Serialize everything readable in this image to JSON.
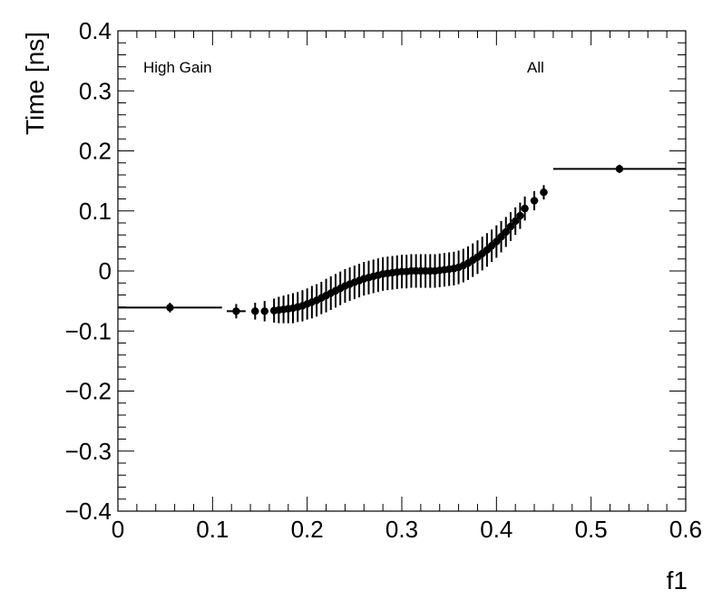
{
  "chart_data": {
    "type": "scatter",
    "title": "",
    "xlabel": "f1",
    "ylabel": "Time [ns]",
    "xlim": [
      0,
      0.6
    ],
    "ylim": [
      -0.4,
      0.4
    ],
    "grid": false,
    "x_ticks": [
      "0",
      "0.1",
      "0.2",
      "0.3",
      "0.4",
      "0.5",
      "0.6"
    ],
    "y_ticks": [
      "−0.4",
      "−0.3",
      "−0.2",
      "−0.1",
      "0",
      "0.1",
      "0.2",
      "0.3",
      "0.4"
    ],
    "annotations": [
      "High Gain",
      "All"
    ],
    "series": [
      {
        "color": "#000000",
        "points": [
          {
            "x": 0.055,
            "y": -0.061,
            "xerr": 0.055,
            "yerr": 0.008
          },
          {
            "x": 0.125,
            "y": -0.067,
            "xerr": 0.01,
            "yerr": 0.012
          },
          {
            "x": 0.145,
            "y": -0.067,
            "xerr": 0.004,
            "yerr": 0.014
          },
          {
            "x": 0.155,
            "y": -0.067,
            "xerr": 0.004,
            "yerr": 0.017
          },
          {
            "x": 0.165,
            "y": -0.066,
            "xerr": 0.004,
            "yerr": 0.02
          },
          {
            "x": 0.17,
            "y": -0.065,
            "xerr": 0.002,
            "yerr": 0.022
          },
          {
            "x": 0.175,
            "y": -0.064,
            "xerr": 0.002,
            "yerr": 0.023
          },
          {
            "x": 0.18,
            "y": -0.063,
            "xerr": 0.002,
            "yerr": 0.024
          },
          {
            "x": 0.185,
            "y": -0.062,
            "xerr": 0.002,
            "yerr": 0.025
          },
          {
            "x": 0.19,
            "y": -0.06,
            "xerr": 0.002,
            "yerr": 0.025
          },
          {
            "x": 0.195,
            "y": -0.058,
            "xerr": 0.002,
            "yerr": 0.026
          },
          {
            "x": 0.2,
            "y": -0.055,
            "xerr": 0.002,
            "yerr": 0.026
          },
          {
            "x": 0.205,
            "y": -0.052,
            "xerr": 0.002,
            "yerr": 0.027
          },
          {
            "x": 0.21,
            "y": -0.049,
            "xerr": 0.002,
            "yerr": 0.027
          },
          {
            "x": 0.215,
            "y": -0.045,
            "xerr": 0.002,
            "yerr": 0.027
          },
          {
            "x": 0.22,
            "y": -0.041,
            "xerr": 0.002,
            "yerr": 0.028
          },
          {
            "x": 0.225,
            "y": -0.037,
            "xerr": 0.002,
            "yerr": 0.028
          },
          {
            "x": 0.23,
            "y": -0.033,
            "xerr": 0.002,
            "yerr": 0.028
          },
          {
            "x": 0.235,
            "y": -0.029,
            "xerr": 0.002,
            "yerr": 0.028
          },
          {
            "x": 0.24,
            "y": -0.025,
            "xerr": 0.002,
            "yerr": 0.028
          },
          {
            "x": 0.245,
            "y": -0.022,
            "xerr": 0.002,
            "yerr": 0.028
          },
          {
            "x": 0.25,
            "y": -0.019,
            "xerr": 0.002,
            "yerr": 0.028
          },
          {
            "x": 0.255,
            "y": -0.016,
            "xerr": 0.002,
            "yerr": 0.028
          },
          {
            "x": 0.26,
            "y": -0.013,
            "xerr": 0.002,
            "yerr": 0.028
          },
          {
            "x": 0.265,
            "y": -0.011,
            "xerr": 0.002,
            "yerr": 0.028
          },
          {
            "x": 0.27,
            "y": -0.009,
            "xerr": 0.002,
            "yerr": 0.028
          },
          {
            "x": 0.275,
            "y": -0.007,
            "xerr": 0.002,
            "yerr": 0.028
          },
          {
            "x": 0.28,
            "y": -0.005,
            "xerr": 0.002,
            "yerr": 0.028
          },
          {
            "x": 0.285,
            "y": -0.004,
            "xerr": 0.002,
            "yerr": 0.028
          },
          {
            "x": 0.29,
            "y": -0.003,
            "xerr": 0.002,
            "yerr": 0.028
          },
          {
            "x": 0.295,
            "y": -0.002,
            "xerr": 0.002,
            "yerr": 0.028
          },
          {
            "x": 0.3,
            "y": -0.001,
            "xerr": 0.002,
            "yerr": 0.028
          },
          {
            "x": 0.305,
            "y": -0.001,
            "xerr": 0.002,
            "yerr": 0.028
          },
          {
            "x": 0.31,
            "y": 0.0,
            "xerr": 0.002,
            "yerr": 0.028
          },
          {
            "x": 0.315,
            "y": 0.0,
            "xerr": 0.002,
            "yerr": 0.028
          },
          {
            "x": 0.32,
            "y": 0.0,
            "xerr": 0.002,
            "yerr": 0.028
          },
          {
            "x": 0.325,
            "y": 0.0,
            "xerr": 0.002,
            "yerr": 0.028
          },
          {
            "x": 0.33,
            "y": 0.0,
            "xerr": 0.002,
            "yerr": 0.028
          },
          {
            "x": 0.335,
            "y": 0.0,
            "xerr": 0.002,
            "yerr": 0.028
          },
          {
            "x": 0.34,
            "y": 0.001,
            "xerr": 0.002,
            "yerr": 0.028
          },
          {
            "x": 0.345,
            "y": 0.002,
            "xerr": 0.002,
            "yerr": 0.028
          },
          {
            "x": 0.35,
            "y": 0.003,
            "xerr": 0.002,
            "yerr": 0.028
          },
          {
            "x": 0.355,
            "y": 0.004,
            "xerr": 0.002,
            "yerr": 0.028
          },
          {
            "x": 0.36,
            "y": 0.006,
            "xerr": 0.002,
            "yerr": 0.028
          },
          {
            "x": 0.365,
            "y": 0.009,
            "xerr": 0.002,
            "yerr": 0.028
          },
          {
            "x": 0.37,
            "y": 0.013,
            "xerr": 0.002,
            "yerr": 0.028
          },
          {
            "x": 0.375,
            "y": 0.018,
            "xerr": 0.002,
            "yerr": 0.028
          },
          {
            "x": 0.38,
            "y": 0.023,
            "xerr": 0.002,
            "yerr": 0.028
          },
          {
            "x": 0.385,
            "y": 0.029,
            "xerr": 0.002,
            "yerr": 0.028
          },
          {
            "x": 0.39,
            "y": 0.035,
            "xerr": 0.002,
            "yerr": 0.028
          },
          {
            "x": 0.395,
            "y": 0.042,
            "xerr": 0.002,
            "yerr": 0.027
          },
          {
            "x": 0.4,
            "y": 0.049,
            "xerr": 0.002,
            "yerr": 0.027
          },
          {
            "x": 0.405,
            "y": 0.057,
            "xerr": 0.002,
            "yerr": 0.026
          },
          {
            "x": 0.41,
            "y": 0.065,
            "xerr": 0.002,
            "yerr": 0.025
          },
          {
            "x": 0.415,
            "y": 0.074,
            "xerr": 0.002,
            "yerr": 0.024
          },
          {
            "x": 0.42,
            "y": 0.083,
            "xerr": 0.002,
            "yerr": 0.023
          },
          {
            "x": 0.425,
            "y": 0.092,
            "xerr": 0.002,
            "yerr": 0.022
          },
          {
            "x": 0.43,
            "y": 0.104,
            "xerr": 0.002,
            "yerr": 0.02
          },
          {
            "x": 0.44,
            "y": 0.117,
            "xerr": 0.004,
            "yerr": 0.016
          },
          {
            "x": 0.45,
            "y": 0.131,
            "xerr": 0.004,
            "yerr": 0.012
          },
          {
            "x": 0.53,
            "y": 0.17,
            "xerr": 0.07,
            "yerr": 0.007
          }
        ]
      }
    ]
  }
}
